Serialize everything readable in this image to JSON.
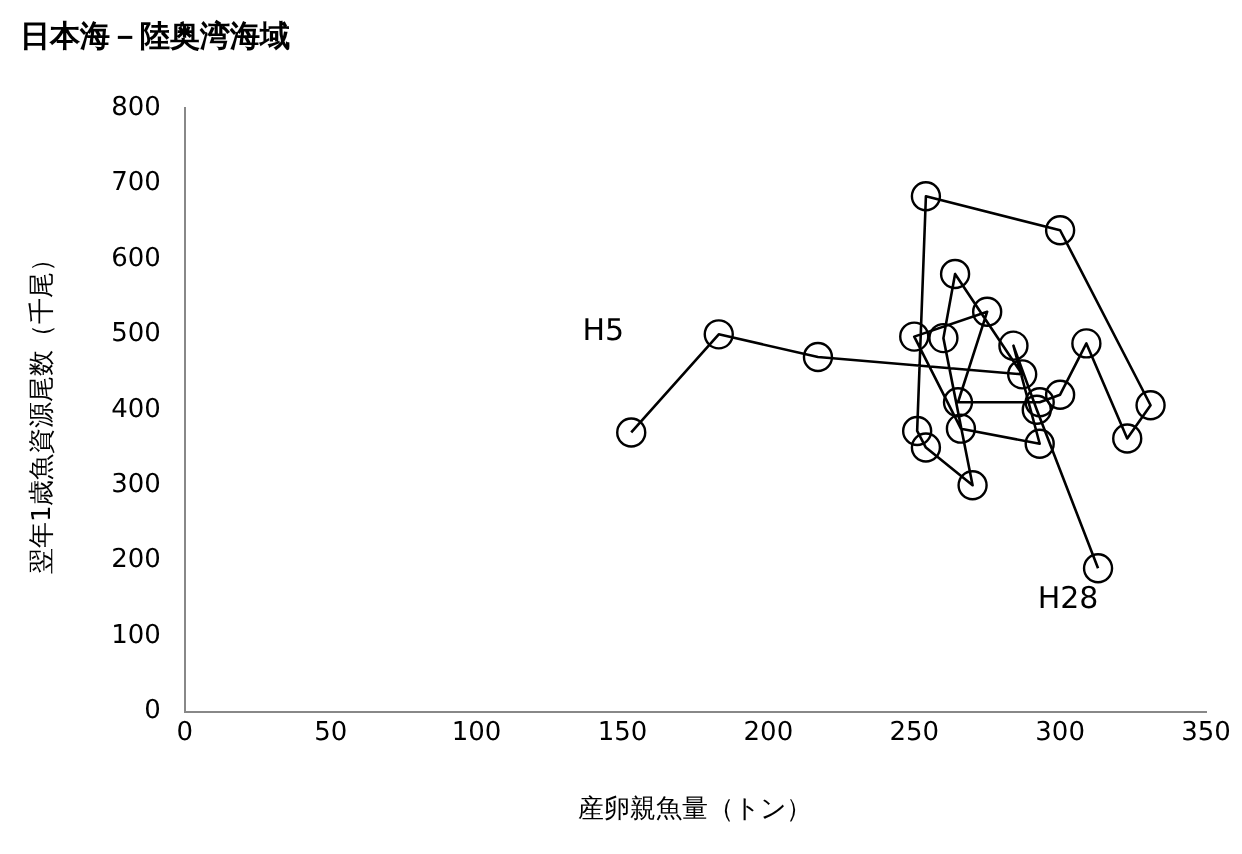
{
  "chart_data": {
    "type": "line",
    "title": "日本海－陸奥湾海域",
    "xlabel": "産卵親魚量（トン）",
    "ylabel": "翌年1歳魚資源尾数（千尾）",
    "xlim": [
      0,
      350
    ],
    "xticks": [
      0,
      50,
      100,
      150,
      200,
      250,
      300,
      350
    ],
    "ylim": [
      0,
      800
    ],
    "yticks": [
      0,
      100,
      200,
      300,
      400,
      500,
      600,
      700,
      800
    ],
    "grid": false,
    "legend": false,
    "marker": "circle",
    "line_style": "solid",
    "series": [
      {
        "color": "#000000",
        "x": [
          153,
          183,
          217,
          287,
          264,
          260,
          270,
          254,
          251,
          254,
          300,
          331,
          323,
          309,
          300,
          293,
          265,
          275,
          250,
          266,
          293,
          284,
          292,
          313
        ],
        "values": [
          370,
          500,
          470,
          447,
          580,
          495,
          300,
          350,
          372,
          683,
          638,
          406,
          362,
          488,
          420,
          410,
          410,
          530,
          497,
          375,
          355,
          485,
          400,
          190
        ]
      }
    ],
    "annotations": [
      {
        "text": "H5",
        "x": 153,
        "y": 370
      },
      {
        "text": "H28",
        "x": 313,
        "y": 190
      }
    ]
  }
}
